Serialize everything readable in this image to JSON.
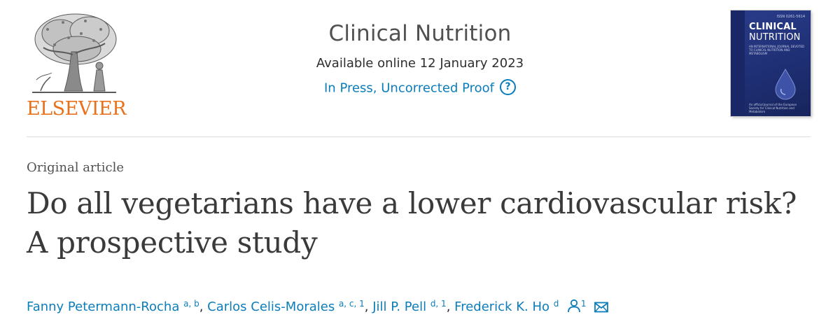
{
  "publisher": {
    "logo_text": "ELSEVIER"
  },
  "journal": {
    "title": "Clinical Nutrition",
    "available": "Available online 12 January 2023",
    "status": "In Press, Uncorrected Proof",
    "help_icon": "?"
  },
  "cover": {
    "issn": "ISSN 0261-5614",
    "title_line1": "CLINICAL",
    "title_line2": "NUTRITION",
    "subtitle": "AN INTERNATIONAL JOURNAL DEVOTED TO CLINICAL NUTRITION AND METABOLISM",
    "footer": "An official Journal of the European Society for Clinical Nutrition and Metabolism"
  },
  "article": {
    "type": "Original article",
    "title": "Do all vegetarians have a lower cardiovascular risk? A prospective study"
  },
  "authors": [
    {
      "name": "Fanny Petermann-Rocha",
      "affil": "a, b"
    },
    {
      "name": "Carlos Celis-Morales",
      "affil": "a, c, 1"
    },
    {
      "name": "Jill P. Pell",
      "affil": "d, 1"
    },
    {
      "name": "Frederick K. Ho",
      "affil": "d"
    }
  ],
  "corresponding": {
    "mark": "1"
  },
  "icons": {
    "publisher_logo": "elsevier-tree-icon",
    "help": "help-circle-icon",
    "person": "person-icon",
    "email": "envelope-icon"
  },
  "colors": {
    "link": "#0c7dbb",
    "elsevier_orange": "#e9711c",
    "cover_blue": "#233580"
  }
}
